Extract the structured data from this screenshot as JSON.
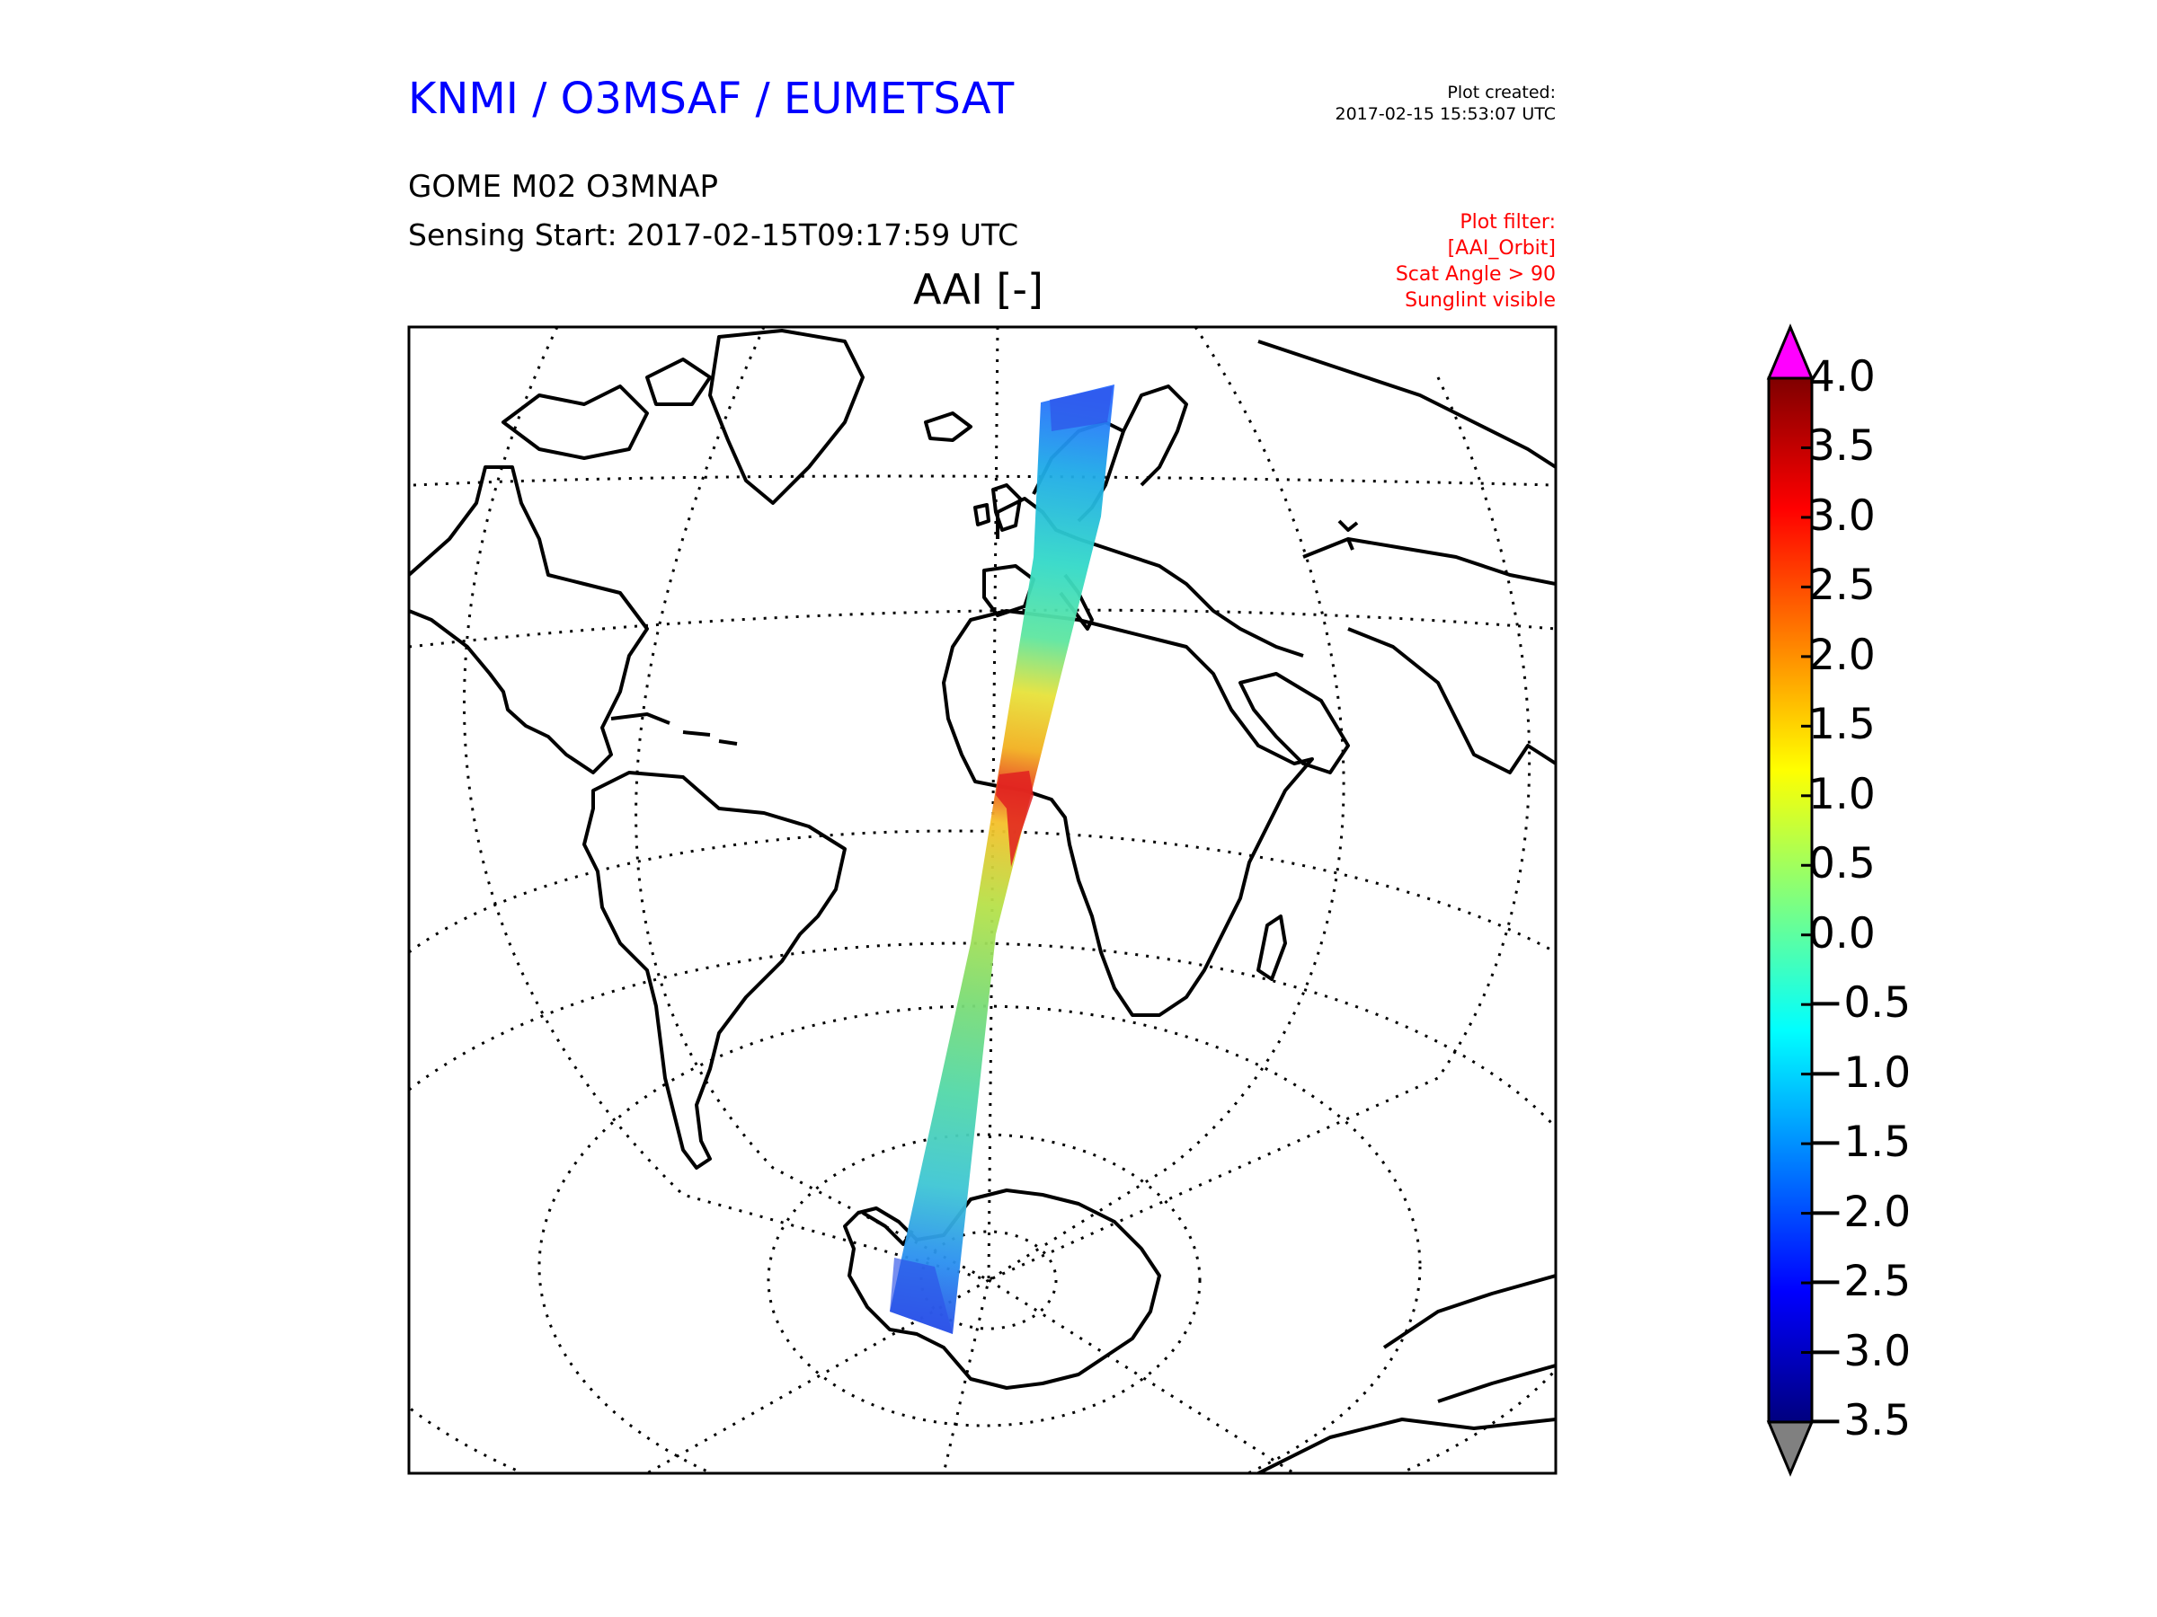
{
  "header": {
    "organization": "KNMI / O3MSAF / EUMETSAT",
    "plot_created_label": "Plot created:",
    "plot_created_value": "2017-02-15 15:53:07 UTC",
    "product": "GOME M02 O3MNAP",
    "sensing_start": "Sensing Start: 2017-02-15T09:17:59 UTC",
    "plot_title": "AAI [-]"
  },
  "filter": {
    "heading": "Plot filter:",
    "items": [
      "[AAI_Orbit]",
      "Scat Angle > 90",
      "Sunglint visible"
    ]
  },
  "colorbar": {
    "min": -3.5,
    "max": 4.0,
    "ticks": [
      "4.0",
      "3.5",
      "3.0",
      "2.5",
      "2.0",
      "1.5",
      "1.0",
      "0.5",
      "0.0",
      "−0.5",
      "−1.0",
      "−1.5",
      "−2.0",
      "−2.5",
      "−3.0",
      "−3.5"
    ],
    "tick_values": [
      4.0,
      3.5,
      3.0,
      2.5,
      2.0,
      1.5,
      1.0,
      0.5,
      0.0,
      -0.5,
      -1.0,
      -1.5,
      -2.0,
      -2.5,
      -3.0,
      -3.5
    ],
    "over_color": "#ff00ff",
    "under_color": "#808080",
    "colormap": [
      "#00007f",
      "#0000ff",
      "#007fff",
      "#00ffff",
      "#7fff7f",
      "#ffff00",
      "#ff7f00",
      "#ff0000",
      "#7f0000"
    ]
  }
}
